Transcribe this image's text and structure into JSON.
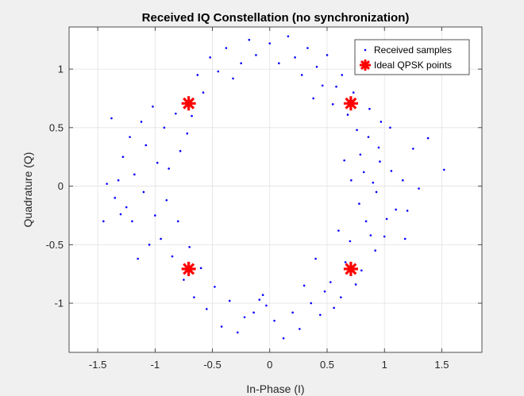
{
  "chart_data": {
    "type": "scatter",
    "title": "Received IQ Constellation (no synchronization)",
    "xlabel": "In-Phase (I)",
    "ylabel": "Quadrature (Q)",
    "xlim": [
      -1.75,
      1.85
    ],
    "ylim": [
      -1.42,
      1.36
    ],
    "xticks": [
      -1.5,
      -1,
      -0.5,
      0,
      0.5,
      1,
      1.5
    ],
    "xtick_labels": [
      "-1.5",
      "-1",
      "-0.5",
      "0",
      "0.5",
      "1",
      "1.5"
    ],
    "yticks": [
      -1,
      -0.5,
      0,
      0.5,
      1
    ],
    "ytick_labels": [
      "-1",
      "-0.5",
      "0",
      "0.5",
      "1"
    ],
    "grid": true,
    "legend_position": "top-right",
    "series": [
      {
        "name": "Received samples",
        "marker": "dot",
        "color": "#0000ff",
        "points": [
          [
            1.52,
            0.14
          ],
          [
            1.38,
            0.41
          ],
          [
            1.3,
            -0.02
          ],
          [
            1.25,
            0.32
          ],
          [
            1.2,
            -0.21
          ],
          [
            1.18,
            -0.45
          ],
          [
            1.16,
            0.05
          ],
          [
            1.1,
            -0.2
          ],
          [
            1.06,
            0.13
          ],
          [
            1.05,
            0.5
          ],
          [
            1.02,
            -0.28
          ],
          [
            1.0,
            -0.43
          ],
          [
            0.97,
            0.55
          ],
          [
            0.96,
            0.21
          ],
          [
            0.95,
            0.33
          ],
          [
            0.93,
            -0.05
          ],
          [
            0.92,
            -0.55
          ],
          [
            0.9,
            0.03
          ],
          [
            0.88,
            -0.42
          ],
          [
            0.87,
            0.66
          ],
          [
            0.86,
            0.42
          ],
          [
            0.84,
            -0.3
          ],
          [
            0.82,
            0.12
          ],
          [
            0.8,
            -0.72
          ],
          [
            0.79,
            0.27
          ],
          [
            0.78,
            -0.15
          ],
          [
            0.76,
            0.48
          ],
          [
            0.75,
            -0.84
          ],
          [
            0.73,
            0.8
          ],
          [
            0.71,
            0.05
          ],
          [
            0.7,
            -0.47
          ],
          [
            0.68,
            0.61
          ],
          [
            0.66,
            -0.65
          ],
          [
            0.65,
            0.22
          ],
          [
            0.63,
            0.95
          ],
          [
            0.62,
            -0.95
          ],
          [
            0.6,
            -0.38
          ],
          [
            0.58,
            0.85
          ],
          [
            0.56,
            -1.04
          ],
          [
            0.55,
            0.7
          ],
          [
            0.53,
            -0.82
          ],
          [
            0.5,
            1.12
          ],
          [
            0.48,
            -0.9
          ],
          [
            0.46,
            0.86
          ],
          [
            0.44,
            -1.1
          ],
          [
            0.41,
            1.02
          ],
          [
            0.4,
            -0.62
          ],
          [
            0.38,
            0.75
          ],
          [
            0.36,
            -1.0
          ],
          [
            0.33,
            1.18
          ],
          [
            0.3,
            -0.85
          ],
          [
            0.28,
            0.95
          ],
          [
            0.26,
            -1.22
          ],
          [
            0.22,
            1.1
          ],
          [
            0.2,
            -1.08
          ],
          [
            0.16,
            1.28
          ],
          [
            0.12,
            -1.3
          ],
          [
            0.08,
            1.05
          ],
          [
            0.04,
            -1.15
          ],
          [
            0.0,
            1.22
          ],
          [
            -0.03,
            -1.02
          ],
          [
            -0.06,
            -0.93
          ],
          [
            -0.09,
            -0.97
          ],
          [
            -0.12,
            1.12
          ],
          [
            -0.14,
            -1.08
          ],
          [
            -0.18,
            1.25
          ],
          [
            -0.22,
            -1.12
          ],
          [
            -0.25,
            1.05
          ],
          [
            -0.28,
            -1.25
          ],
          [
            -0.32,
            0.92
          ],
          [
            -0.35,
            -0.98
          ],
          [
            -0.38,
            1.18
          ],
          [
            -0.42,
            -1.2
          ],
          [
            -0.45,
            0.98
          ],
          [
            -0.48,
            -0.86
          ],
          [
            -0.52,
            1.1
          ],
          [
            -0.55,
            -1.05
          ],
          [
            -0.58,
            0.8
          ],
          [
            -0.6,
            -0.7
          ],
          [
            -0.63,
            0.95
          ],
          [
            -0.66,
            -0.95
          ],
          [
            -0.68,
            0.6
          ],
          [
            -0.7,
            -0.52
          ],
          [
            -0.72,
            0.45
          ],
          [
            -0.75,
            -0.8
          ],
          [
            -0.78,
            0.3
          ],
          [
            -0.8,
            -0.3
          ],
          [
            -0.82,
            0.62
          ],
          [
            -0.85,
            -0.6
          ],
          [
            -0.88,
            0.15
          ],
          [
            -0.9,
            -0.12
          ],
          [
            -0.92,
            0.5
          ],
          [
            -0.95,
            -0.45
          ],
          [
            -0.98,
            0.2
          ],
          [
            -1.0,
            -0.25
          ],
          [
            -1.02,
            0.68
          ],
          [
            -1.05,
            -0.5
          ],
          [
            -1.08,
            0.35
          ],
          [
            -1.1,
            -0.05
          ],
          [
            -1.12,
            0.55
          ],
          [
            -1.15,
            -0.62
          ],
          [
            -1.18,
            0.1
          ],
          [
            -1.2,
            -0.3
          ],
          [
            -1.22,
            0.42
          ],
          [
            -1.25,
            -0.18
          ],
          [
            -1.28,
            0.25
          ],
          [
            -1.3,
            -0.24
          ],
          [
            -1.32,
            0.05
          ],
          [
            -1.35,
            -0.1
          ],
          [
            -1.38,
            0.58
          ],
          [
            -1.42,
            0.02
          ],
          [
            -1.45,
            -0.3
          ]
        ]
      },
      {
        "name": "Ideal QPSK points",
        "marker": "star",
        "color": "#ff0000",
        "points": [
          [
            0.7071,
            0.7071
          ],
          [
            -0.7071,
            0.7071
          ],
          [
            -0.7071,
            -0.7071
          ],
          [
            0.7071,
            -0.7071
          ]
        ]
      }
    ]
  }
}
